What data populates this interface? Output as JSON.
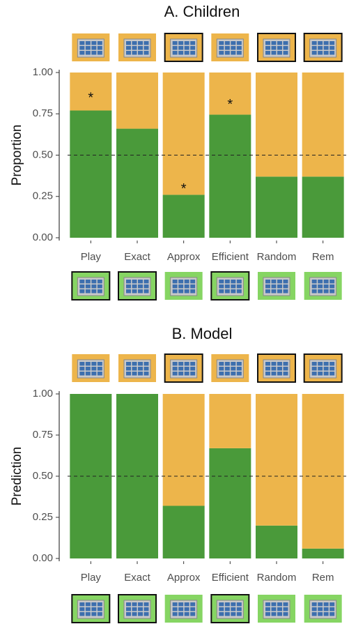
{
  "chart_data": [
    {
      "type": "stacked-bar",
      "title": "A. Children",
      "y_label": "Proportion",
      "categories": [
        "Play",
        "Exact",
        "Approx",
        "Efficient",
        "Random",
        "Rem"
      ],
      "series": [
        {
          "color": "#4a9a3a",
          "values": [
            0.77,
            0.66,
            0.26,
            0.745,
            0.37,
            0.37
          ]
        },
        {
          "color": "#edb54b",
          "values": [
            0.23,
            0.34,
            0.74,
            0.255,
            0.63,
            0.63
          ]
        }
      ],
      "ylim": [
        0,
        1
      ],
      "yticks": [
        {
          "value": 0,
          "label": "0.00"
        },
        {
          "value": 0.25,
          "label": "0.25"
        },
        {
          "value": 0.5,
          "label": "0.50"
        },
        {
          "value": 0.75,
          "label": "0.75"
        },
        {
          "value": 1,
          "label": "1.00"
        }
      ],
      "reference_line": 0.5,
      "annotations": [
        {
          "text": "*",
          "x": "Play",
          "y": 0.86
        },
        {
          "text": "*",
          "x": "Approx",
          "y": 0.31
        },
        {
          "text": "*",
          "x": "Efficient",
          "y": 0.82
        }
      ]
    },
    {
      "type": "stacked-bar",
      "title": "B. Model",
      "y_label": "Prediction",
      "categories": [
        "Play",
        "Exact",
        "Approx",
        "Efficient",
        "Random",
        "Rem"
      ],
      "series": [
        {
          "color": "#4a9a3a",
          "values": [
            1.0,
            1.0,
            0.32,
            0.67,
            0.2,
            0.06
          ]
        },
        {
          "color": "#edb54b",
          "values": [
            0,
            0,
            0.68,
            0.33,
            0.8,
            0.94
          ]
        }
      ],
      "ylim": [
        0,
        1
      ],
      "yticks": [
        {
          "value": 0,
          "label": "0.00"
        },
        {
          "value": 0.25,
          "label": "0.25"
        },
        {
          "value": 0.5,
          "label": "0.50"
        },
        {
          "value": 0.75,
          "label": "0.75"
        },
        {
          "value": 1,
          "label": "1.00"
        }
      ],
      "reference_line": 0.5,
      "annotations": []
    }
  ]
}
